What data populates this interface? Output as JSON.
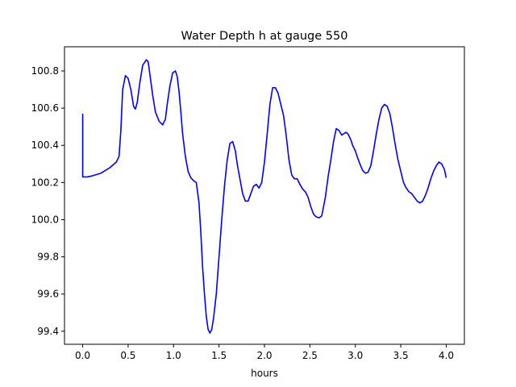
{
  "chart_data": {
    "type": "line",
    "title": "Water Depth h at gauge 550",
    "xlabel": "hours",
    "ylabel": "",
    "xlim": [
      -0.2,
      4.2
    ],
    "ylim": [
      99.33,
      100.93
    ],
    "xticks": [
      0.0,
      0.5,
      1.0,
      1.5,
      2.0,
      2.5,
      3.0,
      3.5,
      4.0
    ],
    "xtick_labels": [
      "0.0",
      "0.5",
      "1.0",
      "1.5",
      "2.0",
      "2.5",
      "3.0",
      "3.5",
      "4.0"
    ],
    "yticks": [
      99.4,
      99.6,
      99.8,
      100.0,
      100.2,
      100.4,
      100.6,
      100.8
    ],
    "ytick_labels": [
      "99.4",
      "99.6",
      "99.8",
      "100.0",
      "100.2",
      "100.4",
      "100.6",
      "100.8"
    ],
    "grid": false,
    "series": [
      {
        "color": "#0000ff",
        "x": [
          0.0,
          0.0,
          0.05,
          0.1,
          0.2,
          0.3,
          0.37,
          0.4,
          0.42,
          0.44,
          0.47,
          0.5,
          0.53,
          0.56,
          0.58,
          0.6,
          0.63,
          0.66,
          0.7,
          0.72,
          0.74,
          0.77,
          0.8,
          0.84,
          0.88,
          0.91,
          0.93,
          0.96,
          0.99,
          1.02,
          1.04,
          1.06,
          1.08,
          1.1,
          1.13,
          1.16,
          1.19,
          1.22,
          1.25,
          1.28,
          1.3,
          1.32,
          1.34,
          1.36,
          1.38,
          1.4,
          1.42,
          1.44,
          1.47,
          1.5,
          1.53,
          1.56,
          1.59,
          1.62,
          1.65,
          1.68,
          1.7,
          1.73,
          1.76,
          1.79,
          1.82,
          1.85,
          1.88,
          1.91,
          1.94,
          1.97,
          2.0,
          2.03,
          2.06,
          2.09,
          2.12,
          2.15,
          2.18,
          2.21,
          2.24,
          2.27,
          2.3,
          2.33,
          2.36,
          2.39,
          2.42,
          2.45,
          2.48,
          2.51,
          2.54,
          2.57,
          2.6,
          2.63,
          2.67,
          2.7,
          2.73,
          2.76,
          2.79,
          2.82,
          2.85,
          2.88,
          2.9,
          2.92,
          2.95,
          2.97,
          3.0,
          3.02,
          3.05,
          3.08,
          3.11,
          3.14,
          3.17,
          3.2,
          3.23,
          3.26,
          3.29,
          3.32,
          3.35,
          3.38,
          3.41,
          3.44,
          3.47,
          3.5,
          3.53,
          3.56,
          3.59,
          3.62,
          3.65,
          3.68,
          3.71,
          3.74,
          3.77,
          3.8,
          3.83,
          3.86,
          3.89,
          3.92,
          3.95,
          3.98,
          4.0
        ],
        "values": [
          100.57,
          100.23,
          100.23,
          100.235,
          100.25,
          100.28,
          100.31,
          100.34,
          100.48,
          100.7,
          100.775,
          100.76,
          100.7,
          100.61,
          100.595,
          100.63,
          100.74,
          100.83,
          100.86,
          100.85,
          100.78,
          100.67,
          100.58,
          100.53,
          100.51,
          100.54,
          100.62,
          100.72,
          100.79,
          100.8,
          100.77,
          100.69,
          100.58,
          100.46,
          100.34,
          100.26,
          100.225,
          100.21,
          100.2,
          100.09,
          99.93,
          99.74,
          99.6,
          99.48,
          99.41,
          99.39,
          99.41,
          99.47,
          99.6,
          99.8,
          100.0,
          100.18,
          100.32,
          100.41,
          100.42,
          100.37,
          100.3,
          100.22,
          100.14,
          100.1,
          100.1,
          100.14,
          100.18,
          100.19,
          100.17,
          100.2,
          100.31,
          100.46,
          100.62,
          100.71,
          100.71,
          100.68,
          100.62,
          100.56,
          100.45,
          100.32,
          100.24,
          100.22,
          100.22,
          100.19,
          100.165,
          100.15,
          100.12,
          100.07,
          100.03,
          100.015,
          100.01,
          100.02,
          100.12,
          100.23,
          100.32,
          100.42,
          100.49,
          100.48,
          100.455,
          100.465,
          100.47,
          100.46,
          100.43,
          100.4,
          100.37,
          100.34,
          100.3,
          100.265,
          100.25,
          100.255,
          100.29,
          100.37,
          100.46,
          100.54,
          100.6,
          100.62,
          100.61,
          100.57,
          100.49,
          100.4,
          100.32,
          100.26,
          100.2,
          100.17,
          100.15,
          100.14,
          100.12,
          100.1,
          100.09,
          100.1,
          100.13,
          100.17,
          100.22,
          100.26,
          100.29,
          100.31,
          100.3,
          100.27,
          100.225
        ]
      }
    ]
  }
}
